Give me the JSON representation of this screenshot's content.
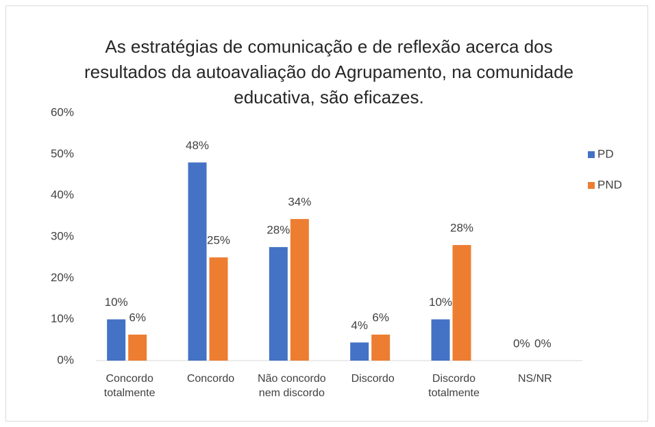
{
  "chart_data": {
    "type": "bar",
    "title": "As estratégias de comunicação e de reflexão acerca dos resultados da autoavaliação do Agrupamento, na comunidade educativa, são eficazes.",
    "categories": [
      "Concordo totalmente",
      "Concordo",
      "Não concordo nem discordo",
      "Discordo",
      "Discordo totalmente",
      "NS/NR"
    ],
    "series": [
      {
        "name": "PD",
        "color": "#4472c4",
        "values": [
          10,
          48,
          27.5,
          4.4,
          10,
          0
        ],
        "value_labels": [
          "10%",
          "48%",
          "28%",
          "4%",
          "10%",
          "0%"
        ]
      },
      {
        "name": "PND",
        "color": "#ed7d31",
        "values": [
          6.3,
          25,
          34.3,
          6.3,
          28,
          0
        ],
        "value_labels": [
          "6%",
          "25%",
          "34%",
          "6%",
          "28%",
          "0%"
        ]
      }
    ],
    "ylim": [
      0,
      60
    ],
    "yticks": [
      {
        "value": 0,
        "label": "0%"
      },
      {
        "value": 10,
        "label": "10%"
      },
      {
        "value": 20,
        "label": "20%"
      },
      {
        "value": 30,
        "label": "30%"
      },
      {
        "value": 40,
        "label": "40%"
      },
      {
        "value": 50,
        "label": "50%"
      },
      {
        "value": 60,
        "label": "60%"
      }
    ],
    "grid": false,
    "legend": "right"
  }
}
